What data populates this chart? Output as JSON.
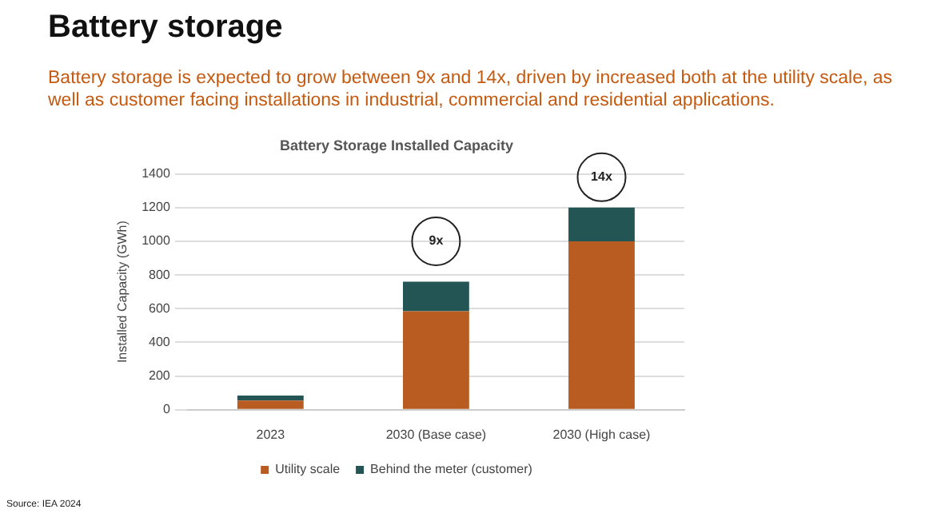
{
  "chart_data": {
    "type": "bar",
    "title": "Battery storage",
    "subtitle": "Battery storage is expected to grow between 9x and 14x, driven by increased both at the utility scale, as well as customer facing installations in industrial, commercial and residential applications.",
    "ylabel": "Installed Capacity (GWh)",
    "categories": [
      "2023",
      "2030 (Base case)",
      "2030 (High case)"
    ],
    "stacked": true,
    "series": [
      {
        "name": "Utility scale",
        "color": "#b85c22",
        "values": [
          55,
          585,
          1000
        ]
      },
      {
        "name": "Behind the meter (customer)",
        "color": "#235555",
        "values": [
          30,
          175,
          200
        ]
      }
    ],
    "ylim": [
      0,
      1400
    ],
    "yticks": [
      0,
      200,
      400,
      600,
      800,
      1000,
      1200,
      1400
    ],
    "grid": "y",
    "legend": "bottom",
    "annotations": [
      "Battery Storage Installed Capacity",
      {
        "text": "9x",
        "x": "2030 (Base case)",
        "y": 1000
      },
      {
        "text": "14x",
        "x": "2030 (High case)",
        "y": 1380
      },
      "Source: IEA 2024"
    ]
  }
}
